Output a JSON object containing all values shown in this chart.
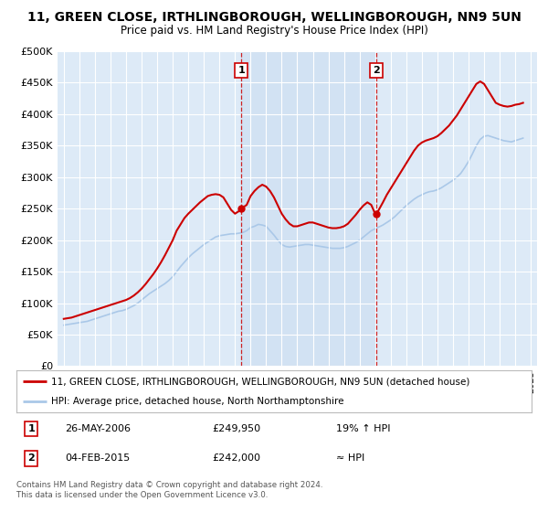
{
  "title": "11, GREEN CLOSE, IRTHLINGBOROUGH, WELLINGBOROUGH, NN9 5UN",
  "subtitle": "Price paid vs. HM Land Registry's House Price Index (HPI)",
  "legend_line1": "11, GREEN CLOSE, IRTHLINGBOROUGH, WELLINGBOROUGH, NN9 5UN (detached house)",
  "legend_line2": "HPI: Average price, detached house, North Northamptonshire",
  "annotation1_label": "1",
  "annotation1_date": "26-MAY-2006",
  "annotation1_price": "£249,950",
  "annotation1_hpi": "19% ↑ HPI",
  "annotation1_year": 2006.4,
  "annotation1_value": 249950,
  "annotation2_label": "2",
  "annotation2_date": "04-FEB-2015",
  "annotation2_price": "£242,000",
  "annotation2_hpi": "≈ HPI",
  "annotation2_year": 2015.1,
  "annotation2_value": 242000,
  "footer": "Contains HM Land Registry data © Crown copyright and database right 2024.\nThis data is licensed under the Open Government Licence v3.0.",
  "bg_color": "#ddeaf7",
  "red_color": "#cc0000",
  "blue_color": "#aac8e8",
  "dashed_color": "#cc0000",
  "ylim_min": 0,
  "ylim_max": 500000,
  "yticks": [
    0,
    50000,
    100000,
    150000,
    200000,
    250000,
    300000,
    350000,
    400000,
    450000,
    500000
  ],
  "hpi_years": [
    1995,
    1995.25,
    1995.5,
    1995.75,
    1996,
    1996.25,
    1996.5,
    1996.75,
    1997,
    1997.25,
    1997.5,
    1997.75,
    1998,
    1998.25,
    1998.5,
    1998.75,
    1999,
    1999.25,
    1999.5,
    1999.75,
    2000,
    2000.25,
    2000.5,
    2000.75,
    2001,
    2001.25,
    2001.5,
    2001.75,
    2002,
    2002.25,
    2002.5,
    2002.75,
    2003,
    2003.25,
    2003.5,
    2003.75,
    2004,
    2004.25,
    2004.5,
    2004.75,
    2005,
    2005.25,
    2005.5,
    2005.75,
    2006,
    2006.25,
    2006.5,
    2006.75,
    2007,
    2007.25,
    2007.5,
    2007.75,
    2008,
    2008.25,
    2008.5,
    2008.75,
    2009,
    2009.25,
    2009.5,
    2009.75,
    2010,
    2010.25,
    2010.5,
    2010.75,
    2011,
    2011.25,
    2011.5,
    2011.75,
    2012,
    2012.25,
    2012.5,
    2012.75,
    2013,
    2013.25,
    2013.5,
    2013.75,
    2014,
    2014.25,
    2014.5,
    2014.75,
    2015,
    2015.25,
    2015.5,
    2015.75,
    2016,
    2016.25,
    2016.5,
    2016.75,
    2017,
    2017.25,
    2017.5,
    2017.75,
    2018,
    2018.25,
    2018.5,
    2018.75,
    2019,
    2019.25,
    2019.5,
    2019.75,
    2020,
    2020.25,
    2020.5,
    2020.75,
    2021,
    2021.25,
    2021.5,
    2021.75,
    2022,
    2022.25,
    2022.5,
    2022.75,
    2023,
    2023.25,
    2023.5,
    2023.75,
    2024,
    2024.25,
    2024.5
  ],
  "hpi_values": [
    65000,
    66000,
    67000,
    68000,
    69000,
    70000,
    71000,
    73000,
    75000,
    77000,
    79000,
    81000,
    83000,
    85000,
    87000,
    88000,
    90000,
    93000,
    96000,
    100000,
    105000,
    110000,
    115000,
    119000,
    123000,
    127000,
    131000,
    136000,
    142000,
    150000,
    158000,
    165000,
    172000,
    178000,
    183000,
    188000,
    193000,
    197000,
    201000,
    205000,
    207000,
    208000,
    209000,
    210000,
    210000,
    211000,
    212000,
    215000,
    220000,
    222000,
    225000,
    224000,
    222000,
    215000,
    208000,
    200000,
    193000,
    190000,
    189000,
    190000,
    191000,
    192000,
    193000,
    193000,
    192000,
    191000,
    190000,
    189000,
    188000,
    187000,
    187000,
    187000,
    188000,
    190000,
    193000,
    196000,
    200000,
    205000,
    210000,
    215000,
    218000,
    221000,
    224000,
    228000,
    232000,
    237000,
    243000,
    249000,
    255000,
    260000,
    265000,
    269000,
    272000,
    275000,
    277000,
    278000,
    280000,
    283000,
    287000,
    291000,
    295000,
    300000,
    306000,
    315000,
    325000,
    337000,
    350000,
    360000,
    365000,
    366000,
    364000,
    362000,
    360000,
    358000,
    357000,
    356000,
    358000,
    360000,
    362000
  ],
  "red_years": [
    1995,
    1995.25,
    1995.5,
    1995.75,
    1996,
    1996.25,
    1996.5,
    1996.75,
    1997,
    1997.25,
    1997.5,
    1997.75,
    1998,
    1998.25,
    1998.5,
    1998.75,
    1999,
    1999.25,
    1999.5,
    1999.75,
    2000,
    2000.25,
    2000.5,
    2000.75,
    2001,
    2001.25,
    2001.5,
    2001.75,
    2002,
    2002.25,
    2002.5,
    2002.75,
    2003,
    2003.25,
    2003.5,
    2003.75,
    2004,
    2004.25,
    2004.5,
    2004.75,
    2005,
    2005.25,
    2005.5,
    2005.75,
    2006,
    2006.25,
    2006.4,
    2006.75,
    2007,
    2007.25,
    2007.5,
    2007.75,
    2008,
    2008.25,
    2008.5,
    2008.75,
    2009,
    2009.25,
    2009.5,
    2009.75,
    2010,
    2010.25,
    2010.5,
    2010.75,
    2011,
    2011.25,
    2011.5,
    2011.75,
    2012,
    2012.25,
    2012.5,
    2012.75,
    2013,
    2013.25,
    2013.5,
    2013.75,
    2014,
    2014.25,
    2014.5,
    2014.75,
    2015,
    2015.1,
    2015.5,
    2015.75,
    2016,
    2016.25,
    2016.5,
    2016.75,
    2017,
    2017.25,
    2017.5,
    2017.75,
    2018,
    2018.25,
    2018.5,
    2018.75,
    2019,
    2019.25,
    2019.5,
    2019.75,
    2020,
    2020.25,
    2020.5,
    2020.75,
    2021,
    2021.25,
    2021.5,
    2021.75,
    2022,
    2022.25,
    2022.5,
    2022.75,
    2023,
    2023.25,
    2023.5,
    2023.75,
    2024,
    2024.25,
    2024.5
  ],
  "red_values": [
    75000,
    76000,
    77000,
    79000,
    81000,
    83000,
    85000,
    87000,
    89000,
    91000,
    93000,
    95000,
    97000,
    99000,
    101000,
    103000,
    105000,
    108000,
    112000,
    117000,
    123000,
    130000,
    138000,
    146000,
    155000,
    165000,
    176000,
    188000,
    200000,
    215000,
    225000,
    235000,
    242000,
    248000,
    254000,
    260000,
    265000,
    270000,
    272000,
    273000,
    272000,
    268000,
    258000,
    248000,
    242000,
    246000,
    249950,
    256000,
    270000,
    278000,
    284000,
    288000,
    285000,
    278000,
    268000,
    255000,
    242000,
    233000,
    226000,
    222000,
    222000,
    224000,
    226000,
    228000,
    228000,
    226000,
    224000,
    222000,
    220000,
    219000,
    219000,
    220000,
    222000,
    226000,
    233000,
    240000,
    248000,
    255000,
    260000,
    256000,
    242000,
    242000,
    260000,
    272000,
    282000,
    292000,
    302000,
    312000,
    322000,
    332000,
    342000,
    350000,
    355000,
    358000,
    360000,
    362000,
    365000,
    370000,
    376000,
    382000,
    390000,
    398000,
    408000,
    418000,
    428000,
    438000,
    448000,
    452000,
    448000,
    438000,
    428000,
    418000,
    415000,
    413000,
    412000,
    413000,
    415000,
    416000,
    418000
  ]
}
